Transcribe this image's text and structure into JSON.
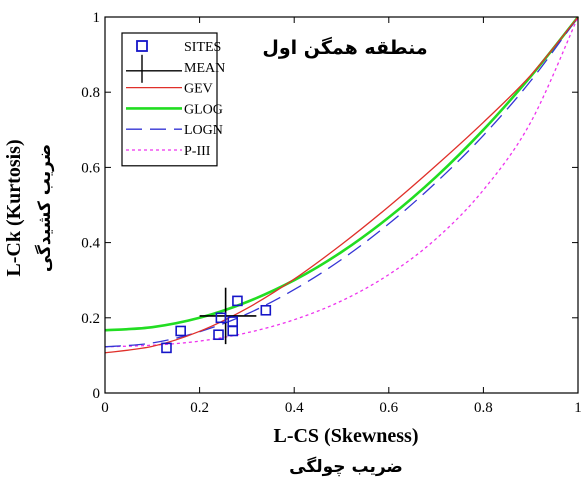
{
  "chart_data": {
    "type": "line",
    "annotation": "منطقه همگن اول",
    "xlabel": "L-CS (Skewness)",
    "xlabel_fa": "ضریب چولگی",
    "ylabel": "L-Ck (Kurtosis)",
    "ylabel_fa": "ضریب کشیدگی",
    "xlim": [
      0,
      1
    ],
    "ylim": [
      0,
      1
    ],
    "x_ticks": [
      "0",
      "0.2",
      "0.4",
      "0.6",
      "0.8",
      "1"
    ],
    "x_tick_values": [
      0,
      0.2,
      0.4,
      0.6,
      0.8,
      1
    ],
    "y_ticks": [
      "0",
      "0.2",
      "0.4",
      "0.6",
      "0.8",
      "1"
    ],
    "y_tick_values": [
      0,
      0.2,
      0.4,
      0.6,
      0.8,
      1
    ],
    "grid": false,
    "legend_position": "top-left",
    "series": [
      {
        "name": "SITES",
        "kind": "points",
        "color": "#1515c8",
        "points": [
          [
            0.13,
            0.12
          ],
          [
            0.16,
            0.165
          ],
          [
            0.24,
            0.155
          ],
          [
            0.245,
            0.2
          ],
          [
            0.27,
            0.19
          ],
          [
            0.27,
            0.165
          ],
          [
            0.28,
            0.245
          ],
          [
            0.34,
            0.22
          ]
        ]
      },
      {
        "name": "MEAN",
        "kind": "cross",
        "color": "#000000",
        "x": 0.255,
        "y": 0.205,
        "x_range": [
          0.2,
          0.32
        ],
        "y_range": [
          0.13,
          0.28
        ]
      },
      {
        "name": "GEV",
        "kind": "line",
        "color": "#e0302a",
        "dash": "solid",
        "x": [
          0,
          0.1,
          0.2,
          0.3,
          0.4,
          0.5,
          0.6,
          0.7,
          0.8,
          0.9,
          1
        ],
        "y": [
          0.107,
          0.124,
          0.164,
          0.225,
          0.303,
          0.395,
          0.496,
          0.605,
          0.72,
          0.845,
          1
        ]
      },
      {
        "name": "GLOG",
        "kind": "line",
        "color": "#22dd22",
        "dash": "solid",
        "x": [
          0,
          0.1,
          0.2,
          0.3,
          0.4,
          0.5,
          0.6,
          0.7,
          0.8,
          0.9,
          1
        ],
        "y": [
          0.167,
          0.175,
          0.2,
          0.242,
          0.3,
          0.375,
          0.467,
          0.575,
          0.7,
          0.842,
          1
        ]
      },
      {
        "name": "LOGN",
        "kind": "line",
        "color": "#3535d5",
        "dash": "long-dash",
        "x": [
          0,
          0.1,
          0.2,
          0.3,
          0.4,
          0.5,
          0.6,
          0.7,
          0.8,
          0.9,
          1
        ],
        "y": [
          0.123,
          0.133,
          0.163,
          0.21,
          0.275,
          0.355,
          0.45,
          0.56,
          0.685,
          0.83,
          1
        ]
      },
      {
        "name": "P-III",
        "kind": "line",
        "color": "#ee33ee",
        "dash": "dotted",
        "x": [
          0,
          0.1,
          0.2,
          0.3,
          0.4,
          0.5,
          0.6,
          0.7,
          0.8,
          0.9,
          1
        ],
        "y": [
          0.123,
          0.127,
          0.138,
          0.16,
          0.195,
          0.245,
          0.315,
          0.41,
          0.54,
          0.72,
          1
        ]
      }
    ]
  }
}
